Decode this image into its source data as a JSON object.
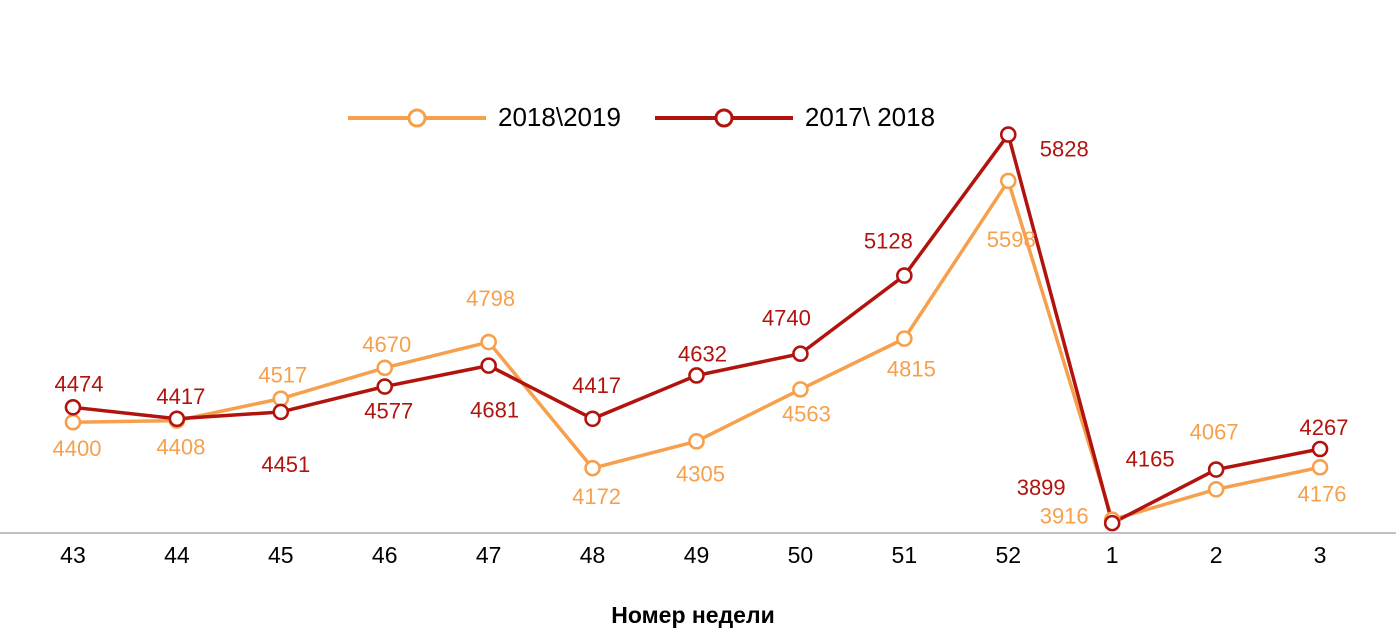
{
  "chart_data": {
    "type": "line",
    "x": [
      "43",
      "44",
      "45",
      "46",
      "47",
      "48",
      "49",
      "50",
      "51",
      "52",
      "1",
      "2",
      "3"
    ],
    "xlabel": "Номер недели",
    "ylim": [
      3850,
      5950
    ],
    "grid": false,
    "legend_position": "top",
    "marker": "open-circle",
    "series": [
      {
        "name": "2018\\2019",
        "color": "#F6A04D",
        "values": [
          4400,
          4408,
          4517,
          4670,
          4798,
          4172,
          4305,
          4563,
          4815,
          5598,
          3916,
          4067,
          4176
        ],
        "label_offsets": [
          [
            4,
            34
          ],
          [
            4,
            34
          ],
          [
            2,
            -16
          ],
          [
            2,
            -16
          ],
          [
            2,
            -36
          ],
          [
            4,
            36
          ],
          [
            4,
            40
          ],
          [
            6,
            32
          ],
          [
            7,
            38
          ],
          [
            3,
            66
          ],
          [
            -48,
            4
          ],
          [
            -2,
            -50
          ],
          [
            2,
            34
          ]
        ]
      },
      {
        "name": "2017\\ 2018",
        "color": "#B1140E",
        "values": [
          4474,
          4417,
          4451,
          4577,
          4681,
          4417,
          4632,
          4740,
          5128,
          5828,
          3899,
          4165,
          4267
        ],
        "label_offsets": [
          [
            6,
            -16
          ],
          [
            4,
            -15
          ],
          [
            5,
            60
          ],
          [
            4,
            32
          ],
          [
            6,
            52
          ],
          [
            4,
            -26
          ],
          [
            6,
            -14
          ],
          [
            -14,
            -28
          ],
          [
            -16,
            -27
          ],
          [
            56,
            22
          ],
          [
            -71,
            -28
          ],
          [
            -66,
            -3
          ],
          [
            4,
            -14
          ]
        ]
      }
    ]
  }
}
